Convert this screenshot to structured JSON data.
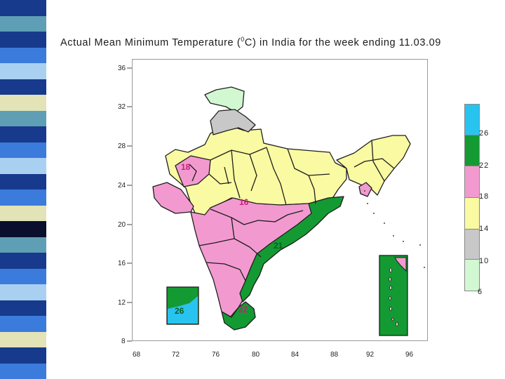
{
  "title": {
    "prefix": "Actual Mean Minimum Temperature (",
    "degree": "0",
    "suffix": "C) in India for the week ending  11.03.09"
  },
  "axes": {
    "y_ticks": [
      "36",
      "32",
      "28",
      "24",
      "20",
      "16",
      "12",
      "8"
    ],
    "x_ticks": [
      "68",
      "72",
      "76",
      "80",
      "84",
      "88",
      "92",
      "96"
    ]
  },
  "legend": {
    "bands": [
      {
        "lower": 26,
        "upper": 30,
        "color": "#29c3f0"
      },
      {
        "lower": 22,
        "upper": 26,
        "color": "#149a32"
      },
      {
        "lower": 18,
        "upper": 22,
        "color": "#f29ad0"
      },
      {
        "lower": 14,
        "upper": 18,
        "color": "#fafaa2"
      },
      {
        "lower": 10,
        "upper": 14,
        "color": "#c8c8c8"
      },
      {
        "lower": 6,
        "upper": 10,
        "color": "#d2f8d2"
      }
    ],
    "labels": [
      "26",
      "22",
      "18",
      "14",
      "10",
      "6"
    ]
  },
  "map_labels": [
    {
      "text": "18",
      "color": "#c81e7a"
    },
    {
      "text": "16",
      "color": "#c81e7a"
    },
    {
      "text": "21",
      "color": "#0d5e20"
    },
    {
      "text": "26",
      "color": "#0d5e20"
    },
    {
      "text": "22",
      "color": "#c81e7a"
    }
  ],
  "colors": {
    "pale_green": "#d2f8d2",
    "gray": "#c8c8c8",
    "yellow": "#fafaa2",
    "pink": "#f29ad0",
    "green": "#149a32",
    "cyan": "#29c3f0"
  },
  "strip_colors": [
    "#173a8c",
    "#5f9fb5",
    "#173a8c",
    "#3b7bdc",
    "#a9d0f0",
    "#173a8c",
    "#e3e3b8",
    "#5f9fb5",
    "#173a8c",
    "#3b7bdc",
    "#a9d0f0",
    "#173a8c",
    "#3b7bdc",
    "#e3e3b8",
    "#0a0f2d",
    "#5f9fb5",
    "#173a8c",
    "#3b7bdc",
    "#a9d0f0",
    "#173a8c",
    "#3b7bdc",
    "#e3e3b8",
    "#173a8c",
    "#3b7bdc"
  ]
}
